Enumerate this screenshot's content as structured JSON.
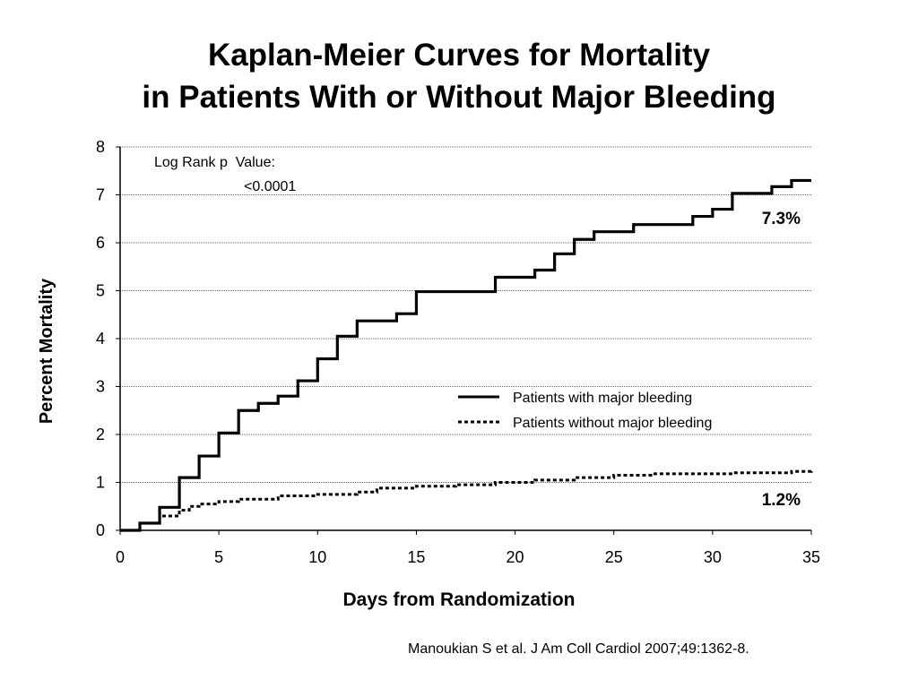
{
  "slide": {
    "title_line1": "Kaplan-Meier Curves for Mortality",
    "title_line2": "in Patients With or Without Major Bleeding",
    "citation": "Manoukian S et al. J Am Coll Cardiol 2007;49:1362-8."
  },
  "chart_data": {
    "type": "line",
    "step": true,
    "xlabel": "Days from Randomization",
    "ylabel": "Percent Mortality",
    "xlim": [
      0,
      35
    ],
    "ylim": [
      0,
      8
    ],
    "xticks": [
      "0",
      "5",
      "10",
      "15",
      "20",
      "25",
      "30",
      "35"
    ],
    "yticks": [
      "0",
      "1",
      "2",
      "3",
      "4",
      "5",
      "6",
      "7",
      "8"
    ],
    "grid": "horizontal",
    "legend_position": "center-right",
    "annotations": {
      "pvalue_label": "Log Rank p  Value:",
      "pvalue_value": "<0.0001",
      "end_label_with": "7.3%",
      "end_label_without": "1.2%"
    },
    "series": [
      {
        "name": "Patients with major bleeding",
        "style": "solid",
        "x": [
          0,
          1,
          2,
          3,
          4,
          5,
          6,
          7,
          8,
          9,
          10,
          11,
          12,
          14,
          15,
          19,
          21,
          22,
          23,
          24,
          26,
          29,
          30,
          31,
          33,
          34,
          35
        ],
        "y": [
          0,
          0.15,
          0.48,
          1.1,
          1.55,
          2.03,
          2.5,
          2.65,
          2.8,
          3.12,
          3.58,
          4.05,
          4.37,
          4.52,
          4.98,
          5.28,
          5.43,
          5.77,
          6.07,
          6.23,
          6.38,
          6.55,
          6.7,
          7.03,
          7.17,
          7.3,
          7.3
        ]
      },
      {
        "name": "Patients without major bleeding",
        "style": "dotted",
        "x": [
          0,
          1,
          2,
          3,
          3.5,
          4,
          5,
          6,
          8,
          10,
          12,
          13,
          15,
          17,
          19,
          21,
          23,
          25,
          27,
          31,
          34,
          35
        ],
        "y": [
          0,
          0.15,
          0.3,
          0.42,
          0.5,
          0.55,
          0.6,
          0.65,
          0.72,
          0.75,
          0.8,
          0.88,
          0.92,
          0.95,
          1.0,
          1.05,
          1.1,
          1.15,
          1.18,
          1.2,
          1.23,
          1.25
        ]
      }
    ]
  }
}
